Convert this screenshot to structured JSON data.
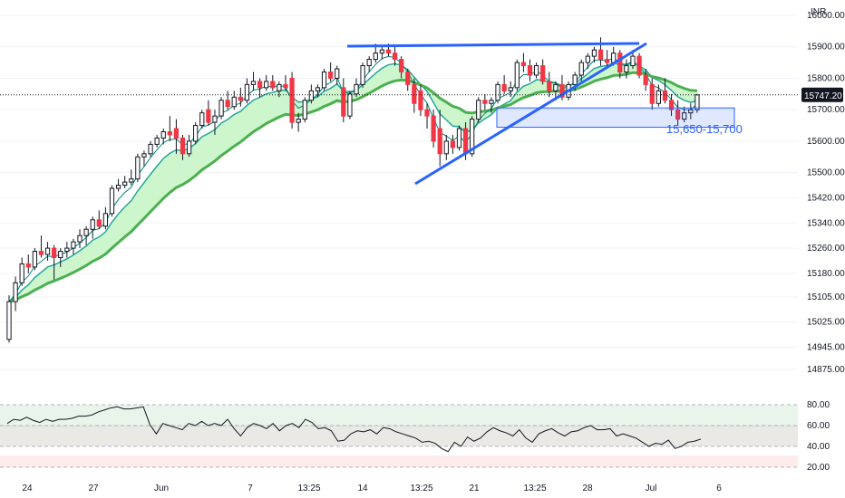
{
  "currency_label": "INR",
  "last_price_label": "15747.20",
  "chart_data": [
    {
      "type": "candlestick",
      "title": "",
      "y_ticks": [
        16000,
        15900,
        15800,
        15700,
        15600,
        15500,
        15420,
        15340,
        15260,
        15180,
        15105,
        15025,
        14945,
        14875
      ],
      "y_tick_labels": [
        "16000.00",
        "15900.00",
        "15800.00",
        "15700.00",
        "15600.00",
        "15500.00",
        "15420.00",
        "15340.00",
        "15260.00",
        "15180.00",
        "15105.00",
        "15025.00",
        "14945.00",
        "14875.00"
      ],
      "x_tick_labels": [
        "24",
        "27",
        "Jun",
        "7",
        "13:25",
        "14",
        "13:25",
        "21",
        "13:25",
        "28",
        "Jul",
        "6"
      ],
      "last_price": 15747.2,
      "zone": {
        "label": "15,650-15,700",
        "low": 15650,
        "high": 15700,
        "color": "#2962ff"
      },
      "series": [
        {
          "kind": "ohlc",
          "values": [
            [
              14970,
              15110,
              14960,
              15090
            ],
            [
              15090,
              15170,
              15060,
              15150
            ],
            [
              15150,
              15230,
              15140,
              15210
            ],
            [
              15210,
              15240,
              15180,
              15200
            ],
            [
              15200,
              15260,
              15190,
              15250
            ],
            [
              15250,
              15300,
              15230,
              15240
            ],
            [
              15240,
              15280,
              15220,
              15260
            ],
            [
              15260,
              15270,
              15160,
              15230
            ],
            [
              15230,
              15260,
              15200,
              15250
            ],
            [
              15250,
              15280,
              15230,
              15260
            ],
            [
              15260,
              15290,
              15240,
              15280
            ],
            [
              15280,
              15320,
              15260,
              15300
            ],
            [
              15300,
              15330,
              15270,
              15320
            ],
            [
              15320,
              15360,
              15290,
              15350
            ],
            [
              15350,
              15380,
              15320,
              15330
            ],
            [
              15330,
              15390,
              15320,
              15370
            ],
            [
              15370,
              15460,
              15360,
              15450
            ],
            [
              15450,
              15480,
              15440,
              15460
            ],
            [
              15460,
              15490,
              15450,
              15470
            ],
            [
              15470,
              15510,
              15460,
              15480
            ],
            [
              15480,
              15560,
              15470,
              15550
            ],
            [
              15550,
              15570,
              15520,
              15560
            ],
            [
              15560,
              15600,
              15550,
              15590
            ],
            [
              15590,
              15620,
              15580,
              15610
            ],
            [
              15610,
              15640,
              15590,
              15630
            ],
            [
              15630,
              15680,
              15600,
              15620
            ],
            [
              15640,
              15670,
              15560,
              15610
            ],
            [
              15610,
              15620,
              15540,
              15560
            ],
            [
              15560,
              15620,
              15550,
              15600
            ],
            [
              15600,
              15660,
              15590,
              15650
            ],
            [
              15650,
              15700,
              15640,
              15690
            ],
            [
              15700,
              15730,
              15650,
              15660
            ],
            [
              15660,
              15700,
              15620,
              15680
            ],
            [
              15680,
              15740,
              15670,
              15730
            ],
            [
              15730,
              15760,
              15700,
              15710
            ],
            [
              15710,
              15760,
              15700,
              15740
            ],
            [
              15740,
              15770,
              15710,
              15730
            ],
            [
              15730,
              15800,
              15720,
              15780
            ],
            [
              15780,
              15820,
              15760,
              15790
            ],
            [
              15790,
              15800,
              15740,
              15770
            ],
            [
              15770,
              15810,
              15760,
              15790
            ],
            [
              15790,
              15810,
              15760,
              15770
            ],
            [
              15760,
              15790,
              15740,
              15780
            ],
            [
              15780,
              15810,
              15760,
              15770
            ],
            [
              15800,
              15820,
              15640,
              15660
            ],
            [
              15660,
              15690,
              15630,
              15670
            ],
            [
              15670,
              15740,
              15660,
              15730
            ],
            [
              15730,
              15780,
              15720,
              15760
            ],
            [
              15760,
              15780,
              15740,
              15770
            ],
            [
              15770,
              15830,
              15760,
              15820
            ],
            [
              15820,
              15850,
              15790,
              15800
            ],
            [
              15800,
              15840,
              15780,
              15830
            ],
            [
              15770,
              15800,
              15660,
              15680
            ],
            [
              15680,
              15760,
              15670,
              15750
            ],
            [
              15750,
              15800,
              15740,
              15780
            ],
            [
              15780,
              15850,
              15770,
              15840
            ],
            [
              15840,
              15870,
              15820,
              15860
            ],
            [
              15860,
              15910,
              15850,
              15880
            ],
            [
              15880,
              15900,
              15860,
              15890
            ],
            [
              15890,
              15910,
              15870,
              15880
            ],
            [
              15880,
              15900,
              15840,
              15860
            ],
            [
              15860,
              15870,
              15800,
              15820
            ],
            [
              15820,
              15830,
              15760,
              15780
            ],
            [
              15780,
              15800,
              15690,
              15720
            ],
            [
              15760,
              15780,
              15680,
              15700
            ],
            [
              15700,
              15720,
              15640,
              15680
            ],
            [
              15680,
              15700,
              15580,
              15600
            ],
            [
              15640,
              15700,
              15520,
              15560
            ],
            [
              15560,
              15620,
              15540,
              15600
            ],
            [
              15600,
              15620,
              15560,
              15580
            ],
            [
              15580,
              15650,
              15570,
              15640
            ],
            [
              15640,
              15660,
              15540,
              15560
            ],
            [
              15560,
              15680,
              15550,
              15670
            ],
            [
              15670,
              15740,
              15660,
              15730
            ],
            [
              15730,
              15750,
              15700,
              15720
            ],
            [
              15720,
              15740,
              15690,
              15730
            ],
            [
              15730,
              15790,
              15720,
              15780
            ],
            [
              15780,
              15810,
              15750,
              15760
            ],
            [
              15760,
              15790,
              15740,
              15770
            ],
            [
              15770,
              15860,
              15760,
              15850
            ],
            [
              15850,
              15880,
              15820,
              15840
            ],
            [
              15840,
              15860,
              15790,
              15810
            ],
            [
              15810,
              15850,
              15800,
              15840
            ],
            [
              15840,
              15860,
              15780,
              15790
            ],
            [
              15790,
              15820,
              15740,
              15760
            ],
            [
              15760,
              15790,
              15730,
              15780
            ],
            [
              15780,
              15810,
              15730,
              15740
            ],
            [
              15740,
              15790,
              15730,
              15780
            ],
            [
              15780,
              15820,
              15760,
              15810
            ],
            [
              15810,
              15860,
              15790,
              15850
            ],
            [
              15850,
              15880,
              15830,
              15870
            ],
            [
              15870,
              15900,
              15850,
              15890
            ],
            [
              15890,
              15930,
              15840,
              15860
            ],
            [
              15860,
              15890,
              15830,
              15850
            ],
            [
              15850,
              15900,
              15840,
              15880
            ],
            [
              15880,
              15890,
              15800,
              15820
            ],
            [
              15820,
              15860,
              15800,
              15840
            ],
            [
              15840,
              15890,
              15830,
              15870
            ],
            [
              15870,
              15880,
              15800,
              15810
            ],
            [
              15810,
              15830,
              15760,
              15780
            ],
            [
              15780,
              15800,
              15700,
              15720
            ],
            [
              15720,
              15780,
              15710,
              15760
            ],
            [
              15760,
              15800,
              15720,
              15730
            ],
            [
              15730,
              15750,
              15680,
              15700
            ],
            [
              15700,
              15730,
              15650,
              15670
            ],
            [
              15670,
              15710,
              15660,
              15690
            ],
            [
              15690,
              15720,
              15670,
              15700
            ],
            [
              15700,
              15750,
              15690,
              15747.2
            ]
          ]
        },
        {
          "kind": "band",
          "fill": "#c8f5c8",
          "upper_color": "#26a69a",
          "lower_color": "#4caf50"
        },
        {
          "kind": "rsi",
          "ticks": [
            80,
            60,
            40,
            20
          ],
          "tick_labels": [
            "80.00",
            "60.00",
            "40.00",
            "20.00"
          ],
          "ylim": [
            20,
            80
          ],
          "values": [
            62,
            66,
            65,
            68,
            65,
            63,
            66,
            64,
            66,
            66,
            67,
            69,
            69,
            70,
            73,
            75,
            77,
            78,
            76,
            76,
            77,
            78,
            61,
            52,
            62,
            60,
            58,
            56,
            62,
            60,
            64,
            60,
            62,
            60,
            66,
            57,
            50,
            58,
            62,
            60,
            57,
            62,
            55,
            60,
            62,
            58,
            66,
            63,
            57,
            58,
            55,
            45,
            46,
            52,
            55,
            54,
            56,
            52,
            58,
            57,
            54,
            52,
            50,
            48,
            44,
            45,
            43,
            38,
            35,
            44,
            40,
            49,
            45,
            48,
            54,
            58,
            55,
            53,
            50,
            56,
            48,
            44,
            52,
            55,
            57,
            53,
            50,
            54,
            55,
            58,
            60,
            56,
            56,
            57,
            50,
            52,
            50,
            48,
            44,
            40,
            43,
            42,
            46,
            38,
            40,
            44,
            45,
            47
          ]
        }
      ]
    }
  ],
  "colors": {
    "up": "#ffffff",
    "down": "#f23645",
    "trend": "#2962ff",
    "band_fill": "#c8f5c8",
    "ema_red": "#f23645"
  }
}
